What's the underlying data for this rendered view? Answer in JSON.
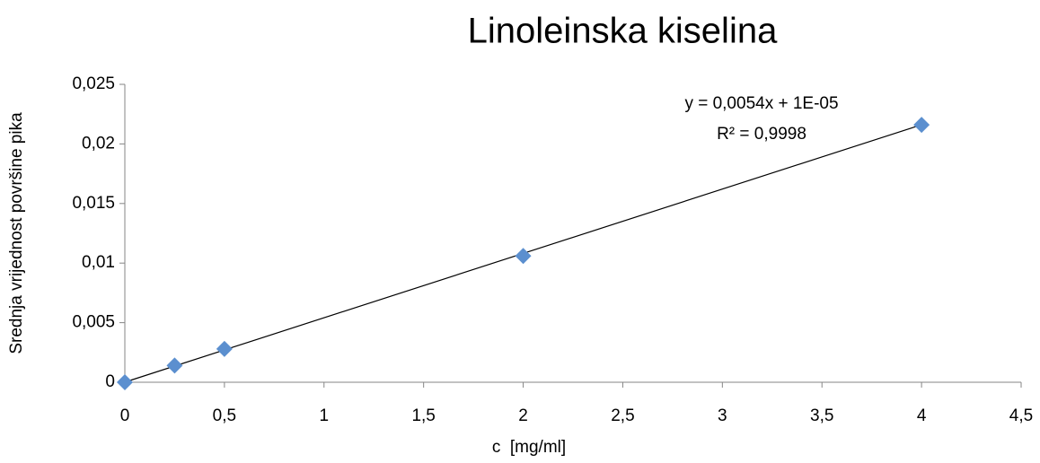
{
  "chart_data": {
    "type": "scatter",
    "title": "Linoleinska kiselina",
    "x_label": "c  [mg/ml]",
    "y_label": "Srednja vrijednost površine pika",
    "annotations": [
      "y = 0,0054x + 1E-05",
      "R² = 0,9998"
    ],
    "series": [
      {
        "name": "Linoleinska kiselina",
        "color": "#5b8fcf",
        "x": [
          0,
          0.25,
          0.5,
          2,
          4
        ],
        "values": [
          0,
          0.0014,
          0.0028,
          0.0106,
          0.0216
        ]
      }
    ],
    "trendline": {
      "slope": 0.0054,
      "intercept": 1e-05,
      "color": "#000000"
    },
    "xlim": [
      0,
      4.5
    ],
    "xticks": [
      0,
      {
        "value": 0.5,
        "label": "0,5"
      },
      1,
      {
        "value": 1.5,
        "label": "1,5"
      },
      2,
      {
        "value": 2.5,
        "label": "2,5"
      },
      3,
      {
        "value": 3.5,
        "label": "3,5"
      },
      4,
      {
        "value": 4.5,
        "label": "4,5"
      }
    ],
    "ylim": [
      0,
      0.025
    ],
    "yticks": [
      0,
      {
        "value": 0.005,
        "label": "0,005"
      },
      {
        "value": 0.01,
        "label": "0,01"
      },
      {
        "value": 0.015,
        "label": "0,015"
      },
      {
        "value": 0.02,
        "label": "0,02"
      },
      {
        "value": 0.025,
        "label": "0,025"
      }
    ],
    "grid": false
  }
}
